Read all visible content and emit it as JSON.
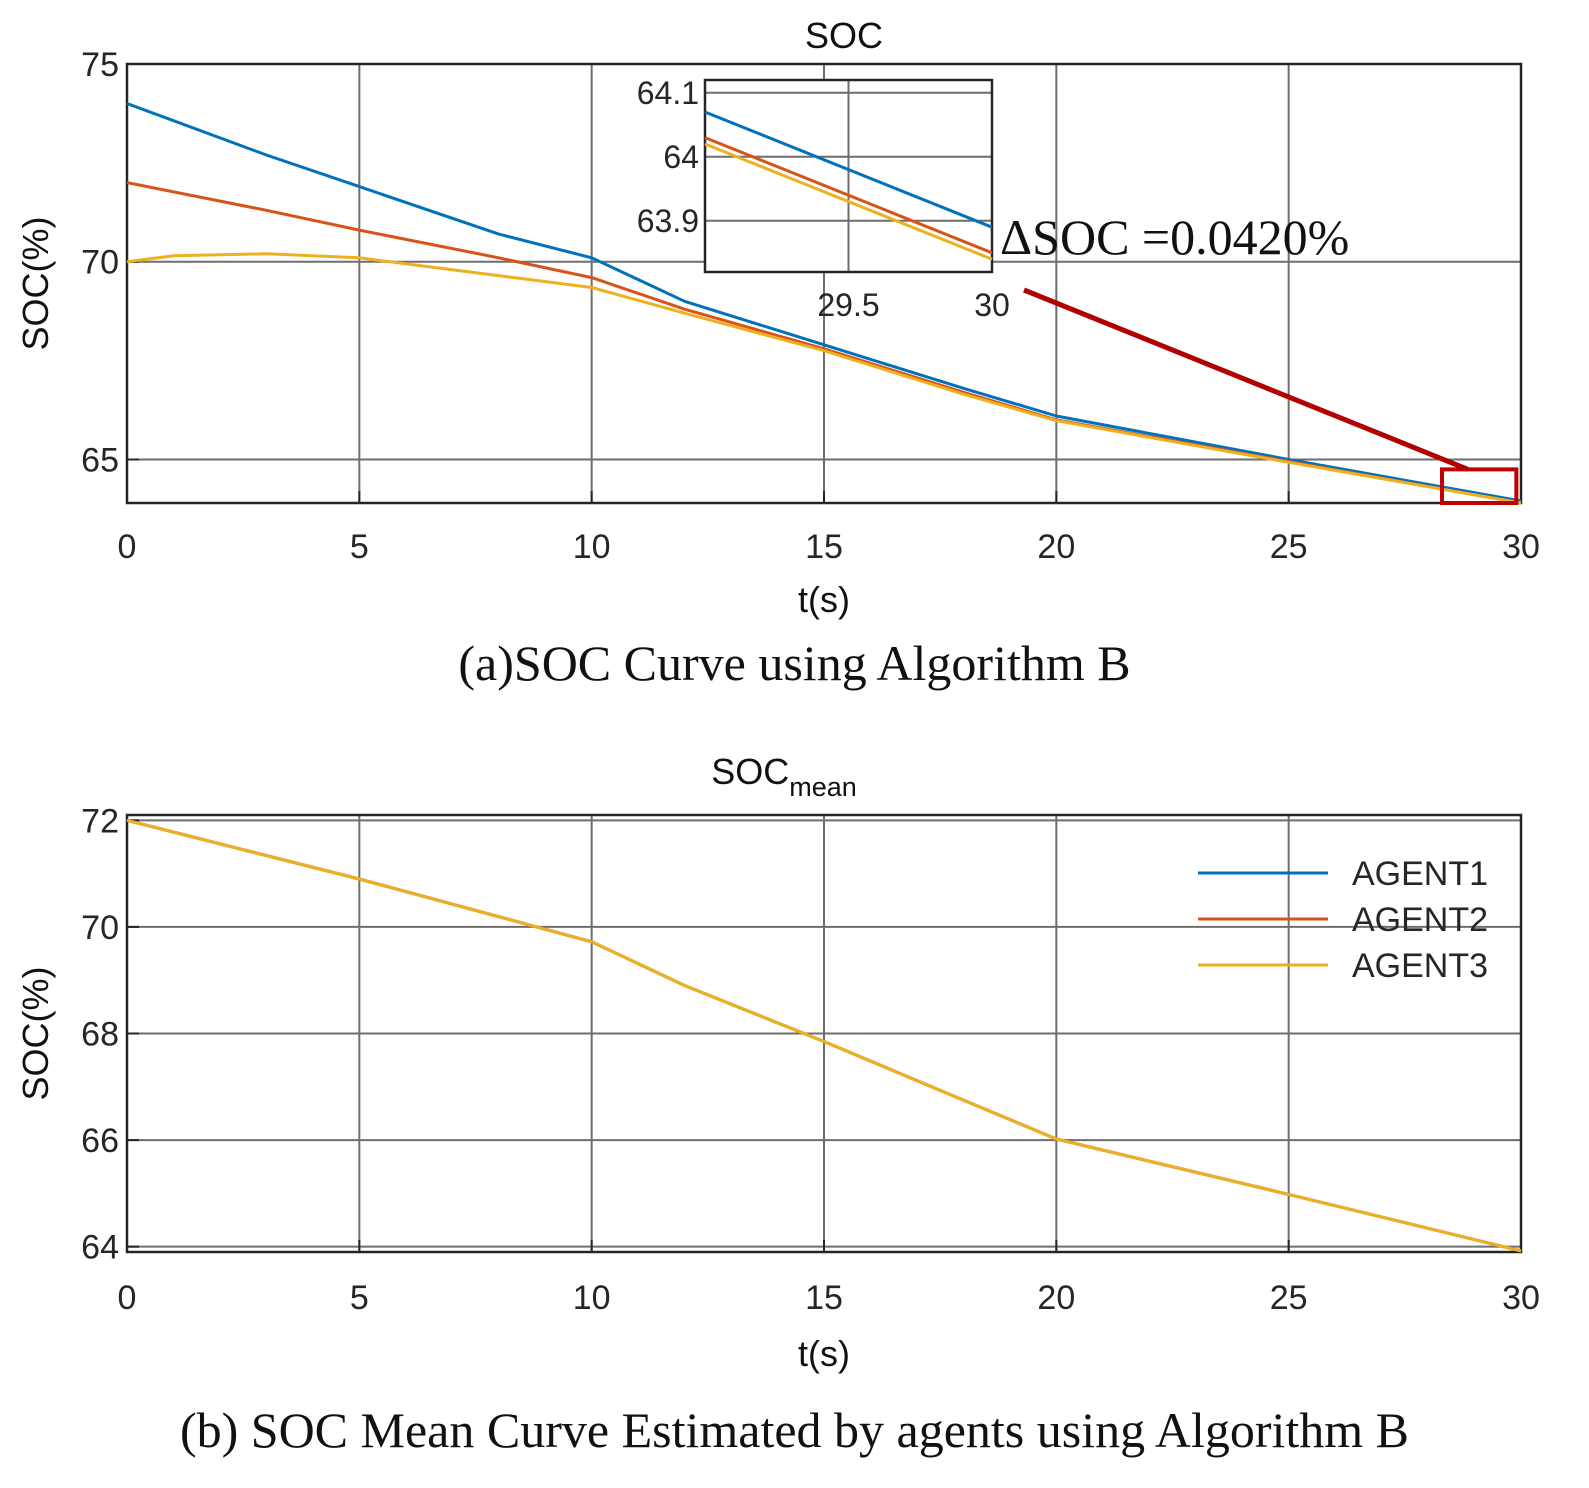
{
  "chart_data": [
    {
      "type": "line",
      "title": "SOC",
      "xlabel": "t(s)",
      "ylabel": "SOC(%)",
      "xlim": [
        0,
        30
      ],
      "ylim": [
        63.9,
        75
      ],
      "xticks": [
        0,
        5,
        10,
        15,
        20,
        25,
        30
      ],
      "yticks": [
        65,
        70,
        75
      ],
      "grid": true,
      "caption": "(a)SOC Curve using Algorithm B",
      "series": [
        {
          "name": "AGENT1",
          "color": "#0072BD",
          "x": [
            0,
            3,
            5,
            8,
            10,
            12,
            15,
            18,
            20,
            25,
            30
          ],
          "y": [
            74.0,
            72.7,
            71.9,
            70.7,
            70.1,
            69.0,
            67.9,
            66.8,
            66.1,
            65.0,
            63.95
          ]
        },
        {
          "name": "AGENT2",
          "color": "#D95319",
          "x": [
            0,
            3,
            5,
            8,
            10,
            12,
            15,
            18,
            20,
            25,
            30
          ],
          "y": [
            72.0,
            71.3,
            70.8,
            70.1,
            69.6,
            68.8,
            67.8,
            66.7,
            66.0,
            64.95,
            63.9
          ]
        },
        {
          "name": "AGENT3",
          "color": "#EDB120",
          "x": [
            0,
            1,
            3,
            5,
            7,
            10,
            12,
            15,
            18,
            20,
            25,
            30
          ],
          "y": [
            70.0,
            70.15,
            70.2,
            70.1,
            69.8,
            69.35,
            68.7,
            67.75,
            66.65,
            65.98,
            64.93,
            63.9
          ]
        }
      ],
      "annotation": {
        "text": "ΔSOC =0.0420%",
        "zoom_box_x": [
          28.3,
          29.9
        ],
        "zoom_box_y": [
          63.9,
          64.75
        ]
      },
      "inset": {
        "xlim": [
          29,
          30
        ],
        "ylim": [
          63.82,
          64.12
        ],
        "xticks": [
          29.5,
          30
        ],
        "yticks": [
          63.9,
          64,
          64.1
        ],
        "series": [
          {
            "name": "AGENT1",
            "x": [
              29,
              30
            ],
            "y": [
              64.07,
              63.89
            ]
          },
          {
            "name": "AGENT2",
            "x": [
              29,
              30
            ],
            "y": [
              64.03,
              63.85
            ]
          },
          {
            "name": "AGENT3",
            "x": [
              29,
              30
            ],
            "y": [
              64.02,
              63.84
            ]
          }
        ]
      }
    },
    {
      "type": "line",
      "title": "SOC",
      "title_subscript": "mean",
      "xlabel": "t(s)",
      "ylabel": "SOC(%)",
      "xlim": [
        0,
        30
      ],
      "ylim": [
        63.9,
        72.1
      ],
      "xticks": [
        0,
        5,
        10,
        15,
        20,
        25,
        30
      ],
      "yticks": [
        64,
        66,
        68,
        70,
        72
      ],
      "grid": true,
      "legend": "top-right",
      "caption": "(b) SOC Mean Curve Estimated by agents  using Algorithm B",
      "series": [
        {
          "name": "AGENT1",
          "color": "#0072BD",
          "x": [
            0,
            5,
            10,
            12,
            15,
            18,
            20,
            25,
            30
          ],
          "y": [
            72.0,
            70.9,
            69.72,
            68.9,
            67.85,
            66.75,
            66.02,
            64.98,
            63.92
          ]
        },
        {
          "name": "AGENT2",
          "color": "#D95319",
          "x": [
            0,
            5,
            10,
            12,
            15,
            18,
            20,
            25,
            30
          ],
          "y": [
            72.0,
            70.9,
            69.72,
            68.9,
            67.85,
            66.75,
            66.02,
            64.98,
            63.92
          ]
        },
        {
          "name": "AGENT3",
          "color": "#EDB120",
          "x": [
            0,
            5,
            10,
            12,
            15,
            18,
            20,
            25,
            30
          ],
          "y": [
            72.0,
            70.9,
            69.72,
            68.9,
            67.85,
            66.75,
            66.02,
            64.98,
            63.92
          ]
        }
      ]
    }
  ]
}
